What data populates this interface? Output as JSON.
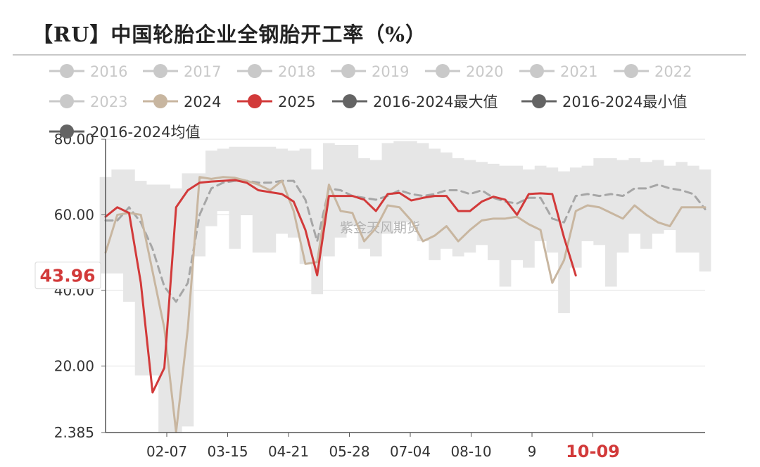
{
  "header": {
    "title": "【RU】中国轮胎企业全钢胎开工率（%）"
  },
  "watermark": "紫金天风期货",
  "colors": {
    "series_2016_2023": "#c9c9c9",
    "series_2024": "#c8b6a0",
    "series_2025": "#d23a3a",
    "band_max_min": "#e6e6e6",
    "average": "#a6a6a6",
    "highlight": "#d23a3a"
  },
  "chart_data": {
    "type": "line",
    "title": "【RU】中国轮胎企业全钢胎开工率（%）",
    "xlabel": "",
    "ylabel": "",
    "ylim": [
      2.385,
      80
    ],
    "y_ticks": [
      "80.00",
      "60.00",
      "40.00",
      "20.00",
      "2.385"
    ],
    "x_ticks": [
      "02-07",
      "03-15",
      "04-21",
      "05-28",
      "07-04",
      "08-10",
      "9",
      "10-09"
    ],
    "highlight": {
      "y_label": "43.96",
      "x_label": "10-09"
    },
    "grid": true,
    "legend_position": "top",
    "legend": [
      "2016",
      "2017",
      "2018",
      "2019",
      "2020",
      "2021",
      "2022",
      "2023",
      "2024",
      "2025",
      "2016-2024最大值",
      "2016-2024最小值",
      "2016-2024均值"
    ],
    "series": [
      {
        "name": "2025",
        "week": [
          1,
          2,
          3,
          4,
          5,
          6,
          7,
          8,
          9,
          10,
          11,
          12,
          13,
          14,
          15,
          16,
          17,
          18,
          19,
          20,
          21,
          22,
          23,
          24,
          25,
          26,
          27,
          28,
          29,
          30,
          31,
          32,
          33,
          34,
          35,
          36,
          37,
          38,
          39,
          40,
          41
        ],
        "values": [
          59.5,
          62,
          60.5,
          42,
          13,
          19.5,
          62,
          66.5,
          68.5,
          68.8,
          69,
          69.2,
          68.5,
          66.5,
          66,
          65.5,
          63.5,
          56,
          44,
          65,
          65,
          65,
          64,
          61,
          65.5,
          65.8,
          63.8,
          64.5,
          65,
          65,
          61,
          61,
          63.5,
          64.8,
          64,
          60,
          65.5,
          65.7,
          65.5,
          54,
          43.96
        ]
      },
      {
        "name": "2024",
        "week": [
          1,
          2,
          3,
          4,
          5,
          6,
          7,
          8,
          9,
          10,
          11,
          12,
          13,
          14,
          15,
          16,
          17,
          18,
          19,
          20,
          21,
          22,
          23,
          24,
          25,
          26,
          27,
          28,
          29,
          30,
          31,
          32,
          33,
          34,
          35,
          36,
          37,
          38,
          39,
          40,
          41,
          42,
          43,
          44,
          45,
          46,
          47,
          48,
          49,
          50,
          51,
          52
        ],
        "values": [
          50,
          60,
          60.5,
          60,
          45,
          30,
          2.5,
          30,
          70,
          69.5,
          70,
          69.8,
          69,
          68,
          66.5,
          69,
          61,
          47,
          47.5,
          68,
          61,
          60.5,
          53,
          56.5,
          62.5,
          62,
          58.5,
          53,
          54.5,
          57,
          53,
          56,
          58.5,
          59,
          59,
          59.5,
          57.5,
          56,
          42,
          48,
          61,
          62.5,
          62,
          60.5,
          59,
          62.5,
          60,
          58,
          57,
          62,
          62,
          62
        ]
      },
      {
        "name": "2016-2024均值",
        "week": [
          1,
          2,
          3,
          4,
          5,
          6,
          7,
          8,
          9,
          10,
          11,
          12,
          13,
          14,
          15,
          16,
          17,
          18,
          19,
          20,
          21,
          22,
          23,
          24,
          25,
          26,
          27,
          28,
          29,
          30,
          31,
          32,
          33,
          34,
          35,
          36,
          37,
          38,
          39,
          40,
          41,
          42,
          43,
          44,
          45,
          46,
          47,
          48,
          49,
          50,
          51,
          52
        ],
        "values": [
          58.5,
          58.5,
          62,
          58,
          51,
          41,
          37,
          42,
          60,
          67,
          68.5,
          69,
          69,
          68.5,
          68.5,
          69,
          69,
          64,
          53,
          67,
          66.5,
          65,
          64.5,
          64,
          65,
          66.5,
          65.5,
          65,
          65.5,
          66.5,
          66.5,
          65.5,
          66.5,
          64.5,
          63.5,
          63,
          64.5,
          64.5,
          59,
          58,
          65,
          65.5,
          65,
          65.5,
          65,
          67,
          67,
          68,
          67,
          66.5,
          65.5,
          61.5
        ]
      },
      {
        "name": "2016-2024最大值",
        "week": [
          1,
          2,
          3,
          4,
          5,
          6,
          7,
          8,
          9,
          10,
          11,
          12,
          13,
          14,
          15,
          16,
          17,
          18,
          19,
          20,
          21,
          22,
          23,
          24,
          25,
          26,
          27,
          28,
          29,
          30,
          31,
          32,
          33,
          34,
          35,
          36,
          37,
          38,
          39,
          40,
          41,
          42,
          43,
          44,
          45,
          46,
          47,
          48,
          49,
          50,
          51,
          52
        ],
        "values": [
          70,
          72,
          72,
          69,
          68,
          68,
          67,
          71,
          71,
          77,
          77.5,
          78,
          78,
          78,
          78,
          77.5,
          77,
          77.5,
          72,
          79,
          78.5,
          78.5,
          75,
          74.5,
          79,
          79.5,
          79.5,
          79,
          77.5,
          76.5,
          75,
          74.5,
          74,
          73.5,
          73,
          73,
          72,
          73,
          72.5,
          71.5,
          72.5,
          73,
          75,
          75,
          74.5,
          75,
          74,
          74.5,
          73,
          74,
          73,
          72
        ]
      },
      {
        "name": "2016-2024最小值",
        "week": [
          1,
          2,
          3,
          4,
          5,
          6,
          7,
          8,
          9,
          10,
          11,
          12,
          13,
          14,
          15,
          16,
          17,
          18,
          19,
          20,
          21,
          22,
          23,
          24,
          25,
          26,
          27,
          28,
          29,
          30,
          31,
          32,
          33,
          34,
          35,
          36,
          37,
          38,
          39,
          40,
          41,
          42,
          43,
          44,
          45,
          46,
          47,
          48,
          49,
          50,
          51,
          52
        ],
        "values": [
          44.5,
          44.5,
          37,
          17.5,
          17.5,
          2.5,
          2.5,
          4,
          49,
          57,
          61,
          51,
          60,
          50,
          50,
          55,
          54,
          47,
          39,
          49,
          54,
          57,
          51,
          49,
          55,
          58,
          58,
          53,
          48,
          51,
          49,
          50,
          52,
          48,
          41,
          48,
          46,
          53,
          50,
          34,
          46,
          53,
          52,
          41,
          50,
          55,
          51,
          55,
          56,
          50,
          50,
          45
        ]
      },
      {
        "name": "2016",
        "values": []
      },
      {
        "name": "2017",
        "values": []
      },
      {
        "name": "2018",
        "values": []
      },
      {
        "name": "2019",
        "values": []
      },
      {
        "name": "2020",
        "values": []
      },
      {
        "name": "2021",
        "values": []
      },
      {
        "name": "2022",
        "values": []
      },
      {
        "name": "2023",
        "values": []
      }
    ]
  }
}
